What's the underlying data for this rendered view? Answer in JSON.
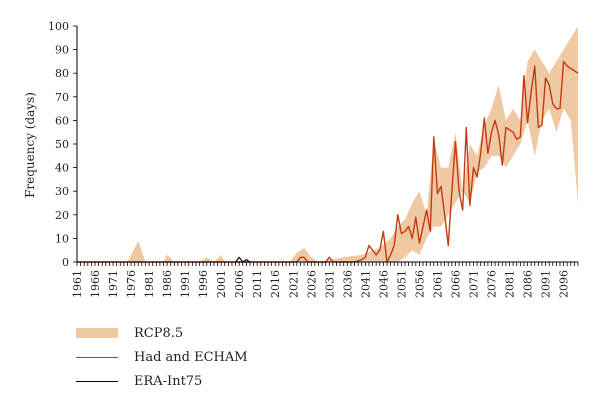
{
  "chart_data": {
    "type": "line",
    "title": "",
    "xlabel": "",
    "ylabel": "Frequency (days)",
    "ylim": [
      0,
      100
    ],
    "xlim": [
      1961,
      2100
    ],
    "yticks": [
      0,
      10,
      20,
      30,
      40,
      50,
      60,
      70,
      80,
      90,
      100
    ],
    "xtick_labels": [
      "1961",
      "1966",
      "1971",
      "1976",
      "1981",
      "1986",
      "1991",
      "1996",
      "2001",
      "2006",
      "2011",
      "2016",
      "2021",
      "2026",
      "2031",
      "2036",
      "2041",
      "2046",
      "2051",
      "2056",
      "2061",
      "2066",
      "2071",
      "2076",
      "2081",
      "2086",
      "2091",
      "2096"
    ],
    "legend_placement": "bottom-left",
    "series": [
      {
        "name": "RCP8.5",
        "kind": "band",
        "color": "#efc9a3",
        "x": [
          1961,
          1975,
          1978,
          1980,
          1985,
          1986,
          1988,
          1995,
          1997,
          1999,
          2001,
          2002,
          2004,
          2020,
          2022,
          2024,
          2026,
          2028,
          2035,
          2040,
          2045,
          2048,
          2050,
          2052,
          2054,
          2056,
          2058,
          2060,
          2062,
          2064,
          2066,
          2068,
          2070,
          2072,
          2074,
          2076,
          2078,
          2080,
          2082,
          2084,
          2086,
          2088,
          2090,
          2092,
          2094,
          2096,
          2098,
          2100
        ],
        "lower": [
          0,
          0,
          0,
          0,
          0,
          0,
          0,
          0,
          0,
          0,
          0,
          0,
          0,
          0,
          0,
          0,
          0,
          0,
          0,
          0,
          0,
          0,
          0,
          2,
          5,
          3,
          10,
          15,
          15,
          20,
          25,
          30,
          25,
          38,
          40,
          45,
          45,
          40,
          45,
          50,
          60,
          45,
          60,
          65,
          55,
          65,
          60,
          25
        ],
        "upper": [
          0,
          0,
          9,
          0,
          0,
          3,
          0,
          0,
          2,
          0,
          3,
          0,
          0,
          0,
          4,
          6,
          2,
          0,
          2,
          3,
          6,
          10,
          15,
          18,
          25,
          30,
          20,
          52,
          40,
          40,
          55,
          30,
          50,
          45,
          58,
          65,
          75,
          60,
          65,
          60,
          85,
          90,
          85,
          80,
          85,
          90,
          95,
          100
        ]
      },
      {
        "name": "Had and ECHAM",
        "kind": "line",
        "color": "#c43a10",
        "x": [
          1961,
          2022,
          2023,
          2024,
          2025,
          2030,
          2031,
          2032,
          2038,
          2040,
          2041,
          2042,
          2043,
          2044,
          2045,
          2046,
          2047,
          2048,
          2049,
          2050,
          2051,
          2052,
          2053,
          2054,
          2055,
          2056,
          2057,
          2058,
          2059,
          2060,
          2061,
          2062,
          2063,
          2064,
          2065,
          2066,
          2067,
          2068,
          2069,
          2070,
          2071,
          2072,
          2073,
          2074,
          2075,
          2076,
          2077,
          2078,
          2079,
          2080,
          2081,
          2082,
          2083,
          2084,
          2085,
          2086,
          2087,
          2088,
          2089,
          2090,
          2091,
          2092,
          2093,
          2094,
          2095,
          2096,
          2097,
          2098,
          2099,
          2100
        ],
        "y": [
          0,
          0,
          2,
          2,
          0,
          0,
          2,
          0,
          0,
          1,
          2,
          7,
          5,
          3,
          5,
          13,
          0,
          3,
          7,
          20,
          12,
          13,
          15,
          10,
          19,
          8,
          15,
          22,
          13,
          53,
          29,
          32,
          20,
          7,
          30,
          51,
          30,
          22,
          57,
          24,
          40,
          36,
          46,
          61,
          46,
          55,
          60,
          54,
          41,
          57,
          56,
          55,
          52,
          53,
          79,
          59,
          72,
          83,
          57,
          58,
          78,
          75,
          67,
          65,
          65,
          85,
          83,
          82,
          81,
          80
        ]
      },
      {
        "name": "ERA-Int75",
        "kind": "line",
        "color": "#000000",
        "x": [
          1961,
          2005,
          2006,
          2007,
          2008,
          2009,
          2010
        ],
        "y": [
          0,
          0,
          2,
          0,
          1,
          0,
          0
        ]
      }
    ]
  },
  "legend": {
    "items": [
      {
        "label": "RCP8.5"
      },
      {
        "label": "Had and ECHAM"
      },
      {
        "label": "ERA-Int75"
      }
    ]
  }
}
